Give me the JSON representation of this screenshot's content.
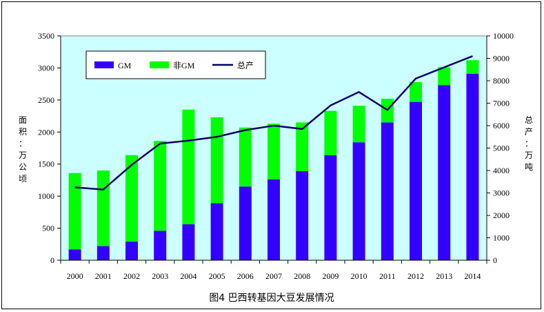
{
  "chart_data": {
    "type": "bar",
    "title": "图4 巴西转基因大豆发展情况",
    "categories": [
      "2000",
      "2001",
      "2002",
      "2003",
      "2004",
      "2005",
      "2006",
      "2007",
      "2008",
      "2009",
      "2010",
      "2011",
      "2012",
      "2013",
      "2014"
    ],
    "series": [
      {
        "name": "GM",
        "kind": "stacked-bar",
        "axis": "left",
        "color": "#3300ff",
        "values": [
          170,
          220,
          290,
          460,
          560,
          890,
          1150,
          1260,
          1390,
          1640,
          1840,
          2150,
          2470,
          2730,
          2910
        ]
      },
      {
        "name": "非GM",
        "kind": "stacked-bar",
        "axis": "left",
        "color": "#00ff00",
        "values": [
          1190,
          1180,
          1350,
          1400,
          1790,
          1340,
          920,
          870,
          760,
          690,
          570,
          370,
          310,
          280,
          210
        ]
      },
      {
        "name": "总产",
        "kind": "line",
        "axis": "right",
        "color": "#000066",
        "values": [
          3250,
          3150,
          4250,
          5200,
          5330,
          5500,
          5800,
          6000,
          5850,
          6900,
          7500,
          6700,
          8100,
          8600,
          9100
        ]
      }
    ],
    "ylabel_left": "面积：万公顷",
    "ylabel_right": "总产：万吨",
    "ylim_left": [
      0,
      3500
    ],
    "ylim_right": [
      0,
      10000
    ],
    "yticks_left": [
      "0",
      "500",
      "1000",
      "1500",
      "2000",
      "2500",
      "3000",
      "3500"
    ],
    "yticks_right": [
      "0",
      "1000",
      "2000",
      "3000",
      "4000",
      "5000",
      "6000",
      "7000",
      "8000",
      "9000",
      "10000"
    ],
    "legend_position": "top-left inside plot",
    "grid": false,
    "plot_background": "#ccffff"
  }
}
